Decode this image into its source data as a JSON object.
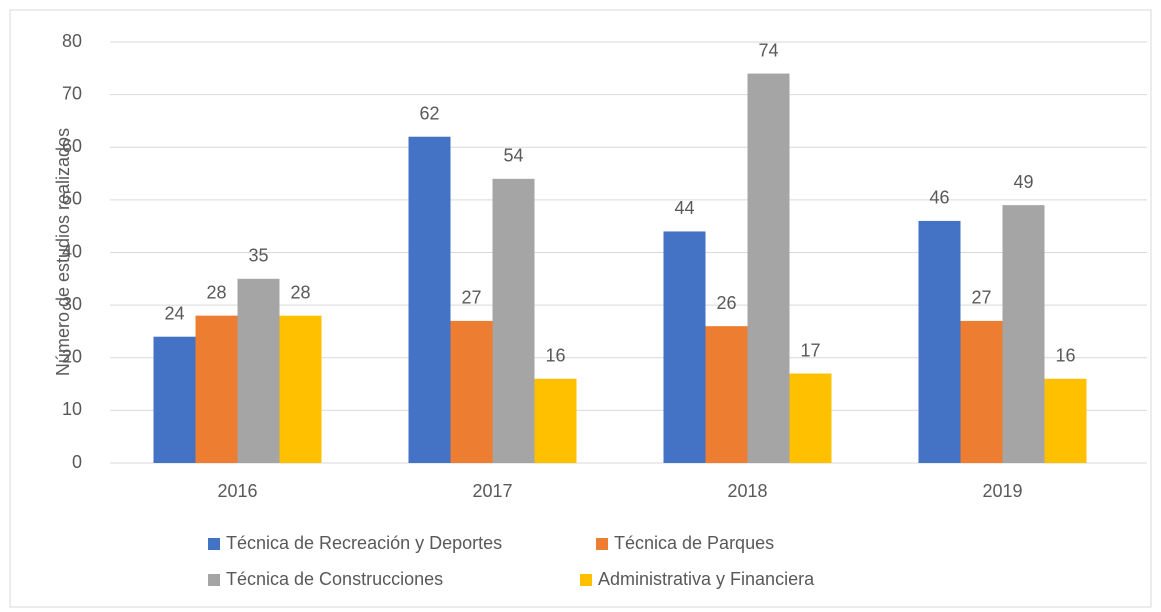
{
  "chart_data": {
    "type": "bar",
    "y_label": "Número de estudios realizados",
    "categories": [
      "2016",
      "2017",
      "2018",
      "2019"
    ],
    "series": [
      {
        "name": "Técnica de Recreación y Deportes",
        "color": "#4472c4",
        "values": [
          24,
          62,
          44,
          46
        ]
      },
      {
        "name": "Técnica de Parques",
        "color": "#ed7d31",
        "values": [
          28,
          27,
          26,
          27
        ]
      },
      {
        "name": "Técnica de Construcciones",
        "color": "#a5a5a5",
        "values": [
          35,
          54,
          74,
          49
        ]
      },
      {
        "name": "Administrativa y Financiera",
        "color": "#ffc000",
        "values": [
          28,
          16,
          17,
          16
        ]
      }
    ],
    "ylim": [
      0,
      80
    ],
    "yticks": [
      0,
      10,
      20,
      30,
      40,
      50,
      60,
      70,
      80
    ],
    "grid": true,
    "legend": "bottom"
  }
}
